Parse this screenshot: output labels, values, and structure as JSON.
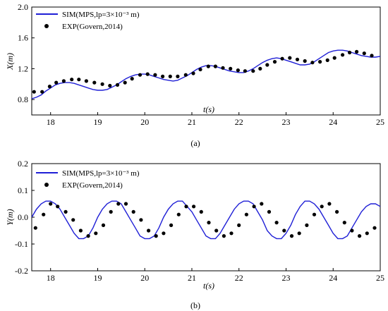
{
  "chart_data": [
    {
      "type": "line",
      "caption": "(a)",
      "xlabel": "t(s)",
      "ylabel": "X(m)",
      "xlim": [
        17.6,
        25.0
      ],
      "ylim": [
        0.6,
        2.0
      ],
      "xticks": [
        18,
        19,
        20,
        21,
        22,
        23,
        24,
        25
      ],
      "yticks": [
        0.8,
        1.2,
        1.6,
        2.0
      ],
      "yticklabels": [
        "0.8",
        "1.2",
        "1.6",
        "2.0"
      ],
      "legend_position": "top-left",
      "series": [
        {
          "name": "SIM(MPS,lp=3×10⁻³ m)",
          "kind": "line",
          "color": "#1f1fd6",
          "x": [
            17.6,
            17.7,
            17.8,
            17.9,
            18.0,
            18.1,
            18.2,
            18.3,
            18.4,
            18.5,
            18.6,
            18.7,
            18.8,
            18.9,
            19.0,
            19.1,
            19.2,
            19.3,
            19.4,
            19.5,
            19.6,
            19.7,
            19.8,
            19.9,
            20.0,
            20.1,
            20.2,
            20.3,
            20.4,
            20.5,
            20.6,
            20.7,
            20.8,
            20.9,
            21.0,
            21.1,
            21.2,
            21.3,
            21.4,
            21.5,
            21.6,
            21.7,
            21.8,
            21.9,
            22.0,
            22.1,
            22.2,
            22.3,
            22.4,
            22.5,
            22.6,
            22.7,
            22.8,
            22.9,
            23.0,
            23.1,
            23.2,
            23.3,
            23.4,
            23.5,
            23.6,
            23.7,
            23.8,
            23.9,
            24.0,
            24.1,
            24.2,
            24.3,
            24.4,
            24.5,
            24.6,
            24.7,
            24.8,
            24.9,
            25.0
          ],
          "y": [
            0.81,
            0.83,
            0.86,
            0.91,
            0.95,
            0.99,
            1.01,
            1.02,
            1.02,
            1.01,
            0.99,
            0.97,
            0.95,
            0.93,
            0.92,
            0.92,
            0.93,
            0.96,
            0.99,
            1.03,
            1.07,
            1.1,
            1.12,
            1.13,
            1.13,
            1.12,
            1.1,
            1.08,
            1.06,
            1.05,
            1.04,
            1.05,
            1.08,
            1.11,
            1.15,
            1.19,
            1.22,
            1.24,
            1.24,
            1.23,
            1.21,
            1.19,
            1.17,
            1.16,
            1.15,
            1.15,
            1.17,
            1.2,
            1.24,
            1.28,
            1.31,
            1.33,
            1.34,
            1.33,
            1.31,
            1.29,
            1.27,
            1.25,
            1.25,
            1.26,
            1.29,
            1.33,
            1.37,
            1.41,
            1.43,
            1.44,
            1.44,
            1.43,
            1.41,
            1.39,
            1.37,
            1.36,
            1.35,
            1.35,
            1.36
          ]
        },
        {
          "name": "EXP(Govern,2014)",
          "kind": "scatter",
          "color": "#000000",
          "x": [
            17.65,
            17.82,
            17.98,
            18.12,
            18.28,
            18.45,
            18.6,
            18.76,
            18.93,
            19.1,
            19.26,
            19.42,
            19.58,
            19.73,
            19.9,
            20.06,
            20.22,
            20.38,
            20.54,
            20.7,
            20.87,
            21.03,
            21.18,
            21.35,
            21.5,
            21.66,
            21.82,
            21.98,
            22.13,
            22.3,
            22.45,
            22.6,
            22.76,
            22.92,
            23.08,
            23.24,
            23.4,
            23.56,
            23.72,
            23.88,
            24.03,
            24.2,
            24.35,
            24.5,
            24.66,
            24.82
          ],
          "y": [
            0.9,
            0.9,
            0.97,
            1.02,
            1.04,
            1.06,
            1.06,
            1.04,
            1.02,
            1.0,
            0.98,
            0.99,
            1.02,
            1.07,
            1.12,
            1.13,
            1.12,
            1.1,
            1.1,
            1.1,
            1.12,
            1.14,
            1.19,
            1.23,
            1.23,
            1.21,
            1.2,
            1.18,
            1.17,
            1.17,
            1.2,
            1.25,
            1.29,
            1.33,
            1.34,
            1.32,
            1.3,
            1.28,
            1.29,
            1.31,
            1.34,
            1.38,
            1.41,
            1.42,
            1.4,
            1.37
          ]
        }
      ]
    },
    {
      "type": "line",
      "caption": "(b)",
      "xlabel": "t(s)",
      "ylabel": "Y(m)",
      "xlim": [
        17.6,
        25.0
      ],
      "ylim": [
        -0.2,
        0.2
      ],
      "xticks": [
        18,
        19,
        20,
        21,
        22,
        23,
        24,
        25
      ],
      "yticks": [
        -0.2,
        -0.1,
        0.0,
        0.1,
        0.2
      ],
      "yticklabels": [
        "-0.2",
        "-0.1",
        "0.0",
        "0.1",
        "0.2"
      ],
      "legend_position": "top-left",
      "series": [
        {
          "name": "SIM(MPS,lp=3×10⁻³ m)",
          "kind": "line",
          "color": "#1f1fd6",
          "x": [
            17.6,
            17.7,
            17.8,
            17.9,
            18.0,
            18.1,
            18.2,
            18.3,
            18.4,
            18.5,
            18.6,
            18.7,
            18.8,
            18.9,
            19.0,
            19.1,
            19.2,
            19.3,
            19.4,
            19.5,
            19.6,
            19.7,
            19.8,
            19.9,
            20.0,
            20.1,
            20.2,
            20.3,
            20.4,
            20.5,
            20.6,
            20.7,
            20.8,
            20.9,
            21.0,
            21.1,
            21.2,
            21.3,
            21.4,
            21.5,
            21.6,
            21.7,
            21.8,
            21.9,
            22.0,
            22.1,
            22.2,
            22.3,
            22.4,
            22.5,
            22.6,
            22.7,
            22.8,
            22.9,
            23.0,
            23.1,
            23.2,
            23.3,
            23.4,
            23.5,
            23.6,
            23.7,
            23.8,
            23.9,
            24.0,
            24.1,
            24.2,
            24.3,
            24.4,
            24.5,
            24.6,
            24.7,
            24.8,
            24.9,
            25.0
          ],
          "y": [
            0.0,
            0.03,
            0.05,
            0.06,
            0.06,
            0.05,
            0.03,
            0.0,
            -0.03,
            -0.06,
            -0.08,
            -0.08,
            -0.07,
            -0.04,
            0.0,
            0.03,
            0.05,
            0.06,
            0.06,
            0.05,
            0.02,
            -0.01,
            -0.04,
            -0.07,
            -0.08,
            -0.08,
            -0.07,
            -0.04,
            0.0,
            0.03,
            0.05,
            0.06,
            0.06,
            0.04,
            0.02,
            -0.01,
            -0.04,
            -0.07,
            -0.08,
            -0.08,
            -0.06,
            -0.03,
            0.0,
            0.03,
            0.05,
            0.06,
            0.06,
            0.05,
            0.02,
            -0.01,
            -0.05,
            -0.07,
            -0.08,
            -0.08,
            -0.06,
            -0.03,
            0.01,
            0.04,
            0.06,
            0.06,
            0.05,
            0.03,
            0.0,
            -0.03,
            -0.06,
            -0.08,
            -0.08,
            -0.07,
            -0.04,
            -0.01,
            0.02,
            0.04,
            0.05,
            0.05,
            0.04
          ]
        },
        {
          "name": "EXP(Govern,2014)",
          "kind": "scatter",
          "color": "#000000",
          "x": [
            17.68,
            17.85,
            18.0,
            18.15,
            18.32,
            18.48,
            18.64,
            18.8,
            18.96,
            19.12,
            19.28,
            19.44,
            19.6,
            19.76,
            19.92,
            20.08,
            20.24,
            20.4,
            20.56,
            20.72,
            20.88,
            21.04,
            21.2,
            21.36,
            21.52,
            21.68,
            21.84,
            22.0,
            22.16,
            22.32,
            22.48,
            22.64,
            22.8,
            22.96,
            23.12,
            23.28,
            23.44,
            23.6,
            23.76,
            23.92,
            24.08,
            24.24,
            24.4,
            24.56,
            24.72,
            24.88
          ],
          "y": [
            -0.04,
            0.01,
            0.05,
            0.04,
            0.02,
            -0.01,
            -0.05,
            -0.07,
            -0.06,
            -0.03,
            0.02,
            0.05,
            0.05,
            0.02,
            -0.01,
            -0.05,
            -0.07,
            -0.06,
            -0.03,
            0.01,
            0.04,
            0.04,
            0.02,
            -0.02,
            -0.05,
            -0.07,
            -0.06,
            -0.03,
            0.01,
            0.04,
            0.05,
            0.02,
            -0.02,
            -0.05,
            -0.07,
            -0.06,
            -0.03,
            0.01,
            0.04,
            0.05,
            0.02,
            -0.02,
            -0.05,
            -0.07,
            -0.06,
            -0.04
          ]
        }
      ]
    }
  ]
}
